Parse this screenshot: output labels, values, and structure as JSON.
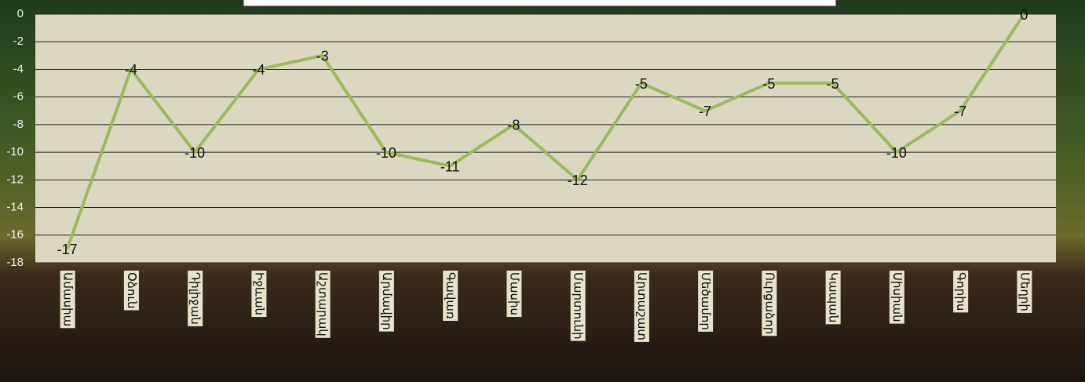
{
  "chart_data": {
    "type": "line",
    "categories": [
      "Ամասիա",
      "Օձուն",
      "Դիլիջան",
      "Իջևան",
      "Աշտարակ",
      "Արմավիր",
      "Գավառ",
      "Մասիս",
      "Մարտունի",
      "Արտաշատ",
      "Մեծամոր",
      "Ուրցաձոր",
      "Կապան",
      "Սիսիան",
      "Գորիս",
      "Մեղրի"
    ],
    "series": [
      {
        "color": "#9bbb59",
        "values": [
          -17,
          -4,
          -10,
          -4,
          -3,
          -10,
          -11,
          -8,
          -12,
          -5,
          -7,
          -5,
          -5,
          -10,
          -7,
          0
        ]
      }
    ],
    "ylim": [
      -18,
      0
    ],
    "yticks": [
      -18,
      -16,
      -14,
      -12,
      -10,
      -8,
      -6,
      -4,
      -2,
      0
    ],
    "grid": true
  }
}
